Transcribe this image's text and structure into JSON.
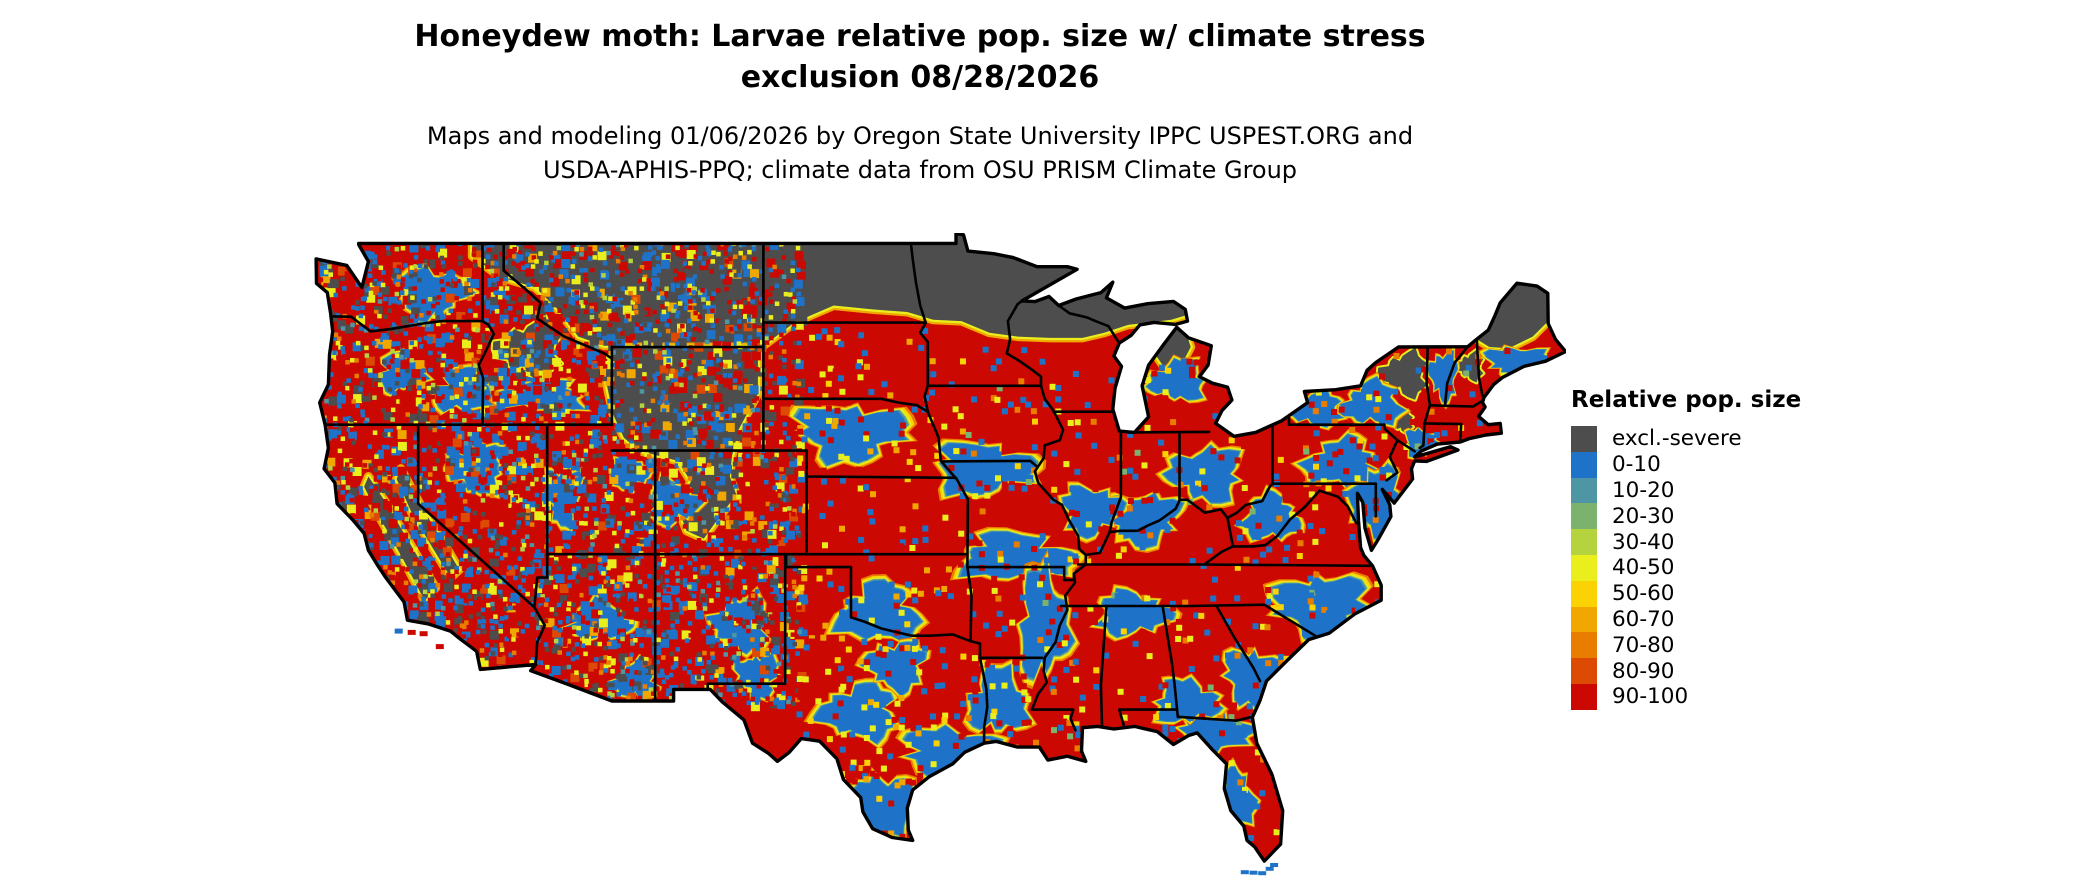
{
  "title": {
    "line1": "Honeydew moth: Larvae relative pop. size w/ climate stress",
    "line2": "exclusion 08/28/2026"
  },
  "subtitle": {
    "line1": "Maps and modeling 01/06/2026 by Oregon State University IPPC USPEST.ORG and",
    "line2": "USDA-APHIS-PPQ; climate data from OSU PRISM Climate Group"
  },
  "map": {
    "region": "Contiguous United States"
  },
  "legend": {
    "title": "Relative pop. size",
    "items": [
      {
        "label": "excl.-severe",
        "color": "#4D4D4D"
      },
      {
        "label": "0-10",
        "color": "#1E73C8"
      },
      {
        "label": "10-20",
        "color": "#4E96A4"
      },
      {
        "label": "20-30",
        "color": "#7BB26E"
      },
      {
        "label": "30-40",
        "color": "#B5D23F"
      },
      {
        "label": "40-50",
        "color": "#EBEE1D"
      },
      {
        "label": "50-60",
        "color": "#FBD304"
      },
      {
        "label": "60-70",
        "color": "#F0A800"
      },
      {
        "label": "70-80",
        "color": "#E87D00"
      },
      {
        "label": "80-90",
        "color": "#DC4A03"
      },
      {
        "label": "90-100",
        "color": "#CB0902"
      }
    ]
  }
}
